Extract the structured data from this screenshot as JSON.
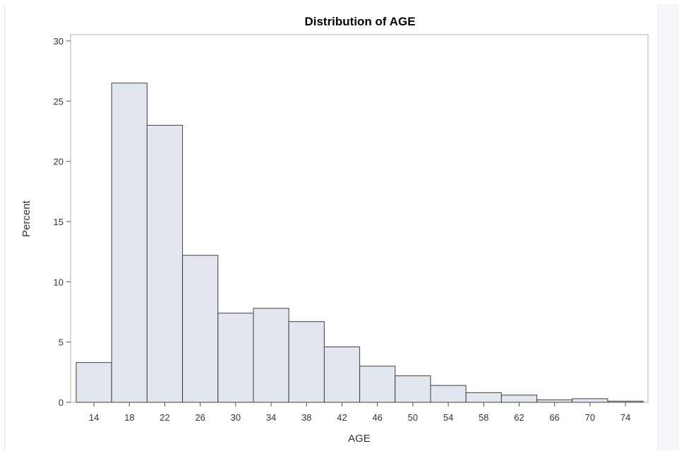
{
  "chart_data": {
    "type": "bar",
    "title": "Distribution of AGE",
    "xlabel": "AGE",
    "ylabel": "Percent",
    "bin_width": 4,
    "bin_midpoints": [
      14,
      18,
      22,
      26,
      30,
      34,
      38,
      42,
      46,
      50,
      54,
      58,
      62,
      66,
      70,
      74
    ],
    "values": [
      3.3,
      26.5,
      23.0,
      12.2,
      7.4,
      7.8,
      6.7,
      4.6,
      3.0,
      2.2,
      1.4,
      0.8,
      0.6,
      0.2,
      0.3,
      0.1
    ],
    "x_ticks": [
      14,
      18,
      22,
      26,
      30,
      34,
      38,
      42,
      46,
      50,
      54,
      58,
      62,
      66,
      70,
      74
    ],
    "y_ticks": [
      0,
      5,
      10,
      15,
      20,
      25,
      30
    ],
    "ylim": [
      0,
      30
    ],
    "grid": false,
    "legend": "none",
    "colors": {
      "bar_fill": "#e1e6ef",
      "bar_stroke": "#3f3f3f",
      "frame": "#b0b0b0",
      "axis": "#555555"
    }
  }
}
